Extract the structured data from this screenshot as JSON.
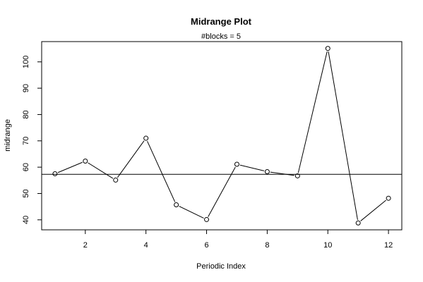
{
  "chart_data": {
    "type": "line",
    "title": "Midrange Plot",
    "subtitle": "#blocks =  5",
    "xlabel": "Periodic Index",
    "ylabel": "midrange",
    "x": [
      1,
      2,
      3,
      4,
      5,
      6,
      7,
      8,
      9,
      10,
      11,
      12
    ],
    "series": [
      {
        "values": [
          57.5,
          62.3,
          55.1,
          71.0,
          45.7,
          40.1,
          61.1,
          58.3,
          56.7,
          105.1,
          38.8,
          48.2
        ]
      }
    ],
    "reference_line": 57.3,
    "xlim": [
      0.56,
      12.44
    ],
    "ylim": [
      36.2,
      107.7
    ],
    "xticks": [
      2,
      4,
      6,
      8,
      10,
      12
    ],
    "yticks": [
      40,
      50,
      60,
      70,
      80,
      90,
      100
    ],
    "grid": false,
    "colors": {
      "line": "#000000",
      "marker": "#000000",
      "background": "#ffffff"
    }
  }
}
